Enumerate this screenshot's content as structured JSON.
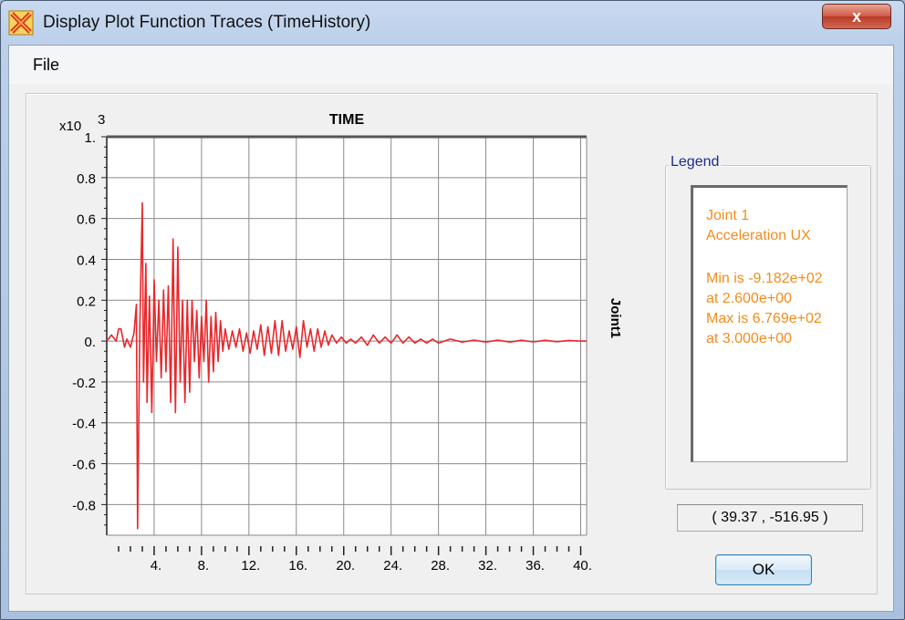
{
  "window": {
    "title": "Display Plot Function Traces  (TimeHistory)",
    "close_label": "x",
    "icon": "sap-x-app-icon"
  },
  "menu": {
    "file_label": "File"
  },
  "chart_data": {
    "type": "line",
    "title": "TIME",
    "ylabel": "Joint1",
    "y_multiplier_label": "x10",
    "y_multiplier_exponent": "3",
    "xlim": [
      0,
      40.5
    ],
    "ylim": [
      -0.95,
      1.0
    ],
    "x_tick_labels": [
      "4.",
      "8.",
      "12.",
      "16.",
      "20.",
      "24.",
      "28.",
      "32.",
      "36.",
      "40."
    ],
    "x_ticks": [
      4,
      8,
      12,
      16,
      20,
      24,
      28,
      32,
      36,
      40
    ],
    "y_tick_labels": [
      "1.",
      "0.8",
      "0.6",
      "0.4",
      "0.2",
      "0.",
      "-0.2",
      "-0.4",
      "-0.6",
      "-0.8"
    ],
    "y_ticks": [
      1.0,
      0.8,
      0.6,
      0.4,
      0.2,
      0.0,
      -0.2,
      -0.4,
      -0.6,
      -0.8
    ],
    "grid": true,
    "line_color": "#e8282c",
    "series": [
      {
        "x": [
          0,
          0.4,
          0.8,
          1.0,
          1.2,
          1.5,
          1.7,
          2.0,
          2.3,
          2.5,
          2.6,
          2.8,
          3.0,
          3.1,
          3.3,
          3.4,
          3.6,
          3.8,
          4.0,
          4.2,
          4.4,
          4.6,
          4.8,
          5.0,
          5.2,
          5.4,
          5.6,
          5.8,
          6.0,
          6.2,
          6.4,
          6.6,
          6.8,
          7.0,
          7.2,
          7.4,
          7.6,
          7.8,
          8.0,
          8.2,
          8.4,
          8.6,
          8.8,
          9.0,
          9.2,
          9.4,
          9.6,
          9.8,
          10.0,
          10.3,
          10.6,
          10.9,
          11.2,
          11.5,
          11.8,
          12.1,
          12.4,
          12.7,
          13.0,
          13.3,
          13.6,
          13.9,
          14.2,
          14.5,
          14.8,
          15.1,
          15.4,
          15.7,
          16.0,
          16.3,
          16.6,
          16.9,
          17.2,
          17.5,
          17.8,
          18.1,
          18.4,
          18.7,
          19.0,
          19.4,
          19.8,
          20.2,
          20.6,
          21.0,
          21.5,
          22.0,
          22.5,
          23.0,
          23.5,
          24.0,
          24.5,
          25.0,
          25.5,
          26.0,
          26.5,
          27.0,
          27.5,
          28.0,
          29.0,
          30.0,
          31.0,
          32.0,
          33.0,
          34.0,
          35.0,
          36.0,
          37.0,
          38.0,
          39.0,
          40.0,
          40.5
        ],
        "values": [
          0.0,
          0.03,
          0.0,
          0.06,
          0.06,
          -0.03,
          0.01,
          -0.03,
          0.04,
          0.18,
          -0.918,
          0.1,
          0.677,
          -0.2,
          0.38,
          -0.3,
          0.22,
          -0.35,
          0.3,
          -0.1,
          0.2,
          -0.18,
          0.25,
          -0.15,
          0.27,
          -0.3,
          0.5,
          -0.35,
          0.46,
          -0.2,
          0.2,
          -0.3,
          0.2,
          -0.25,
          0.2,
          -0.1,
          0.15,
          -0.18,
          0.12,
          -0.1,
          0.2,
          -0.2,
          0.12,
          -0.15,
          0.14,
          -0.1,
          0.1,
          -0.05,
          0.06,
          -0.04,
          0.05,
          -0.03,
          0.06,
          -0.05,
          0.04,
          -0.06,
          0.05,
          -0.04,
          0.08,
          -0.07,
          0.07,
          -0.06,
          0.1,
          -0.07,
          0.1,
          -0.05,
          0.05,
          -0.04,
          0.07,
          -0.08,
          0.1,
          -0.03,
          0.06,
          -0.05,
          0.06,
          -0.03,
          0.05,
          -0.02,
          0.03,
          -0.01,
          0.02,
          -0.01,
          0.01,
          -0.01,
          0.02,
          -0.02,
          0.03,
          -0.01,
          0.02,
          -0.01,
          0.03,
          -0.01,
          0.02,
          -0.01,
          0.01,
          -0.01,
          0.01,
          -0.01,
          0.01,
          -0.005,
          0.005,
          -0.005,
          0.005,
          -0.005,
          0.004,
          -0.004,
          0.004,
          -0.003,
          0.003,
          0.0,
          0.0
        ]
      }
    ]
  },
  "legend": {
    "title": "Legend",
    "lines": [
      "Joint 1",
      "Acceleration  UX",
      "",
      "Min is -9.182e+02",
      "at 2.600e+00",
      "Max is 6.769e+02",
      "at 3.000e+00"
    ],
    "color": "#f28c1c"
  },
  "coord_readout": "( 39.37 , -516.95 )",
  "ok_label": "OK"
}
